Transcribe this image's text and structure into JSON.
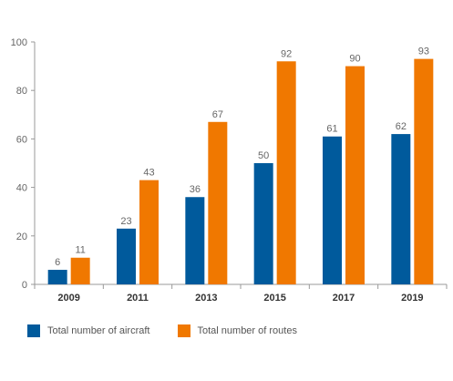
{
  "chart_data": {
    "type": "bar",
    "title": "",
    "xlabel": "",
    "ylabel": "",
    "categories": [
      "2009",
      "2011",
      "2013",
      "2015",
      "2017",
      "2019"
    ],
    "series": [
      {
        "name": "Total number of aircraft",
        "values": [
          6,
          23,
          36,
          50,
          61,
          62
        ],
        "color": "#005a9c"
      },
      {
        "name": "Total number of routes",
        "values": [
          11,
          43,
          67,
          92,
          90,
          93
        ],
        "color": "#f07800"
      }
    ],
    "yticks": [
      0,
      20,
      40,
      60,
      80,
      100
    ],
    "ylim": [
      0,
      100
    ],
    "grid": false,
    "legend_position": "bottom-left",
    "data_labels": true
  }
}
